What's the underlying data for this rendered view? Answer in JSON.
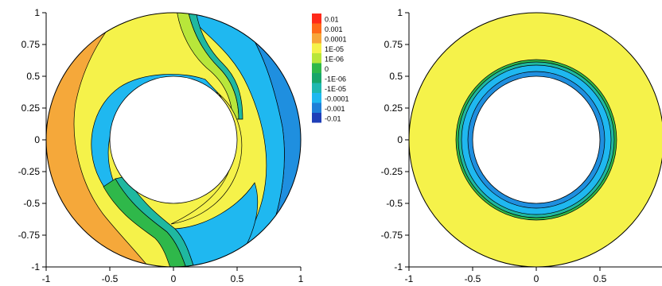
{
  "chart_data": [
    {
      "type": "heatmap",
      "title": "",
      "xlabel": "",
      "ylabel": "",
      "xlim": [
        -1,
        1
      ],
      "ylim": [
        -1,
        1
      ],
      "x_ticks": [
        "-1",
        "-0.5",
        "0",
        "0.5",
        "1"
      ],
      "y_ticks": [
        "1",
        "0.75",
        "0.5",
        "0.25",
        "0",
        "-0.25",
        "-0.5",
        "-0.75",
        "-1"
      ],
      "domain": "annulus",
      "inner_radius": 0.5,
      "outer_radius": 1.0,
      "grid": false
    },
    {
      "type": "heatmap",
      "title": "",
      "xlabel": "",
      "ylabel": "",
      "xlim": [
        -1,
        1
      ],
      "ylim": [
        -1,
        1
      ],
      "x_ticks": [
        "-1",
        "-0.5",
        "0",
        "0.5"
      ],
      "y_ticks": [
        "1",
        "0.75",
        "0.5",
        "0.25",
        "0",
        "-0.25",
        "-0.5",
        "-0.75",
        "-1"
      ],
      "domain": "annulus",
      "inner_radius": 0.5,
      "outer_radius": 1.0,
      "grid": false
    }
  ],
  "legend": {
    "placement": "top-right of left panel",
    "levels": [
      "0.01",
      "0.001",
      "0.0001",
      "1E-05",
      "1E-06",
      "0",
      "-1E-06",
      "-1E-05",
      "-0.0001",
      "-0.001",
      "-0.01"
    ],
    "colors": [
      "#ff2a1a",
      "#ff6a1a",
      "#f7a63a",
      "#f5f24a",
      "#b8e63a",
      "#2fb84a",
      "#18a66a",
      "#1fb8b0",
      "#1fb8f0",
      "#1f7fd8",
      "#1f3fb8"
    ]
  },
  "colors": {
    "outer_yellow": "#f5f24a",
    "orange": "#f5a83a",
    "light_blue": "#1fb8f0",
    "mid_blue": "#1f8fdf",
    "light_green": "#b8e63a",
    "green": "#2fb84a",
    "teal": "#1fb8a0"
  }
}
